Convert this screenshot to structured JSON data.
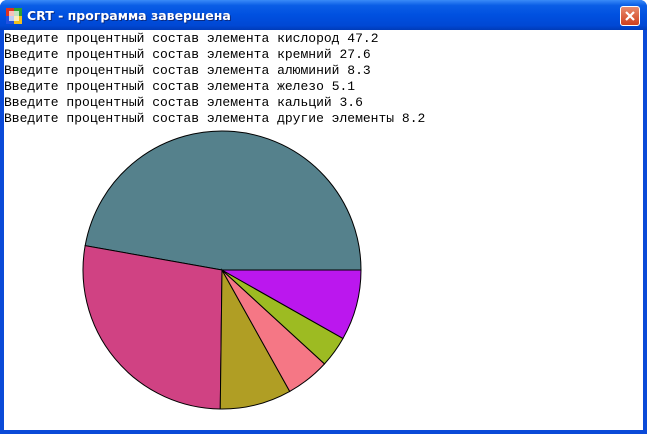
{
  "window": {
    "title": "CRT - программа завершена"
  },
  "console": {
    "prompt": "Введите процентный состав элемента",
    "entries": [
      {
        "name": "кислород",
        "value": 47.2,
        "color": "#55818c"
      },
      {
        "name": "кремний",
        "value": 27.6,
        "color": "#d04283"
      },
      {
        "name": "алюминий",
        "value": 8.3,
        "color": "#b09e24"
      },
      {
        "name": "железо",
        "value": 5.1,
        "color": "#f57785"
      },
      {
        "name": "кальций",
        "value": 3.6,
        "color": "#9dbb22"
      },
      {
        "name": "другие элементы",
        "value": 8.2,
        "color": "#bb17ee"
      }
    ]
  }
}
